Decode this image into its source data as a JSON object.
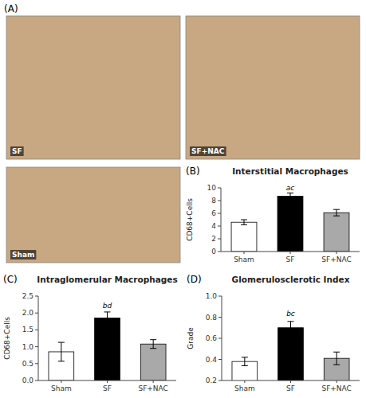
{
  "chart_data": [
    {
      "type": "image",
      "categories": [
        "SF",
        "SF+NAC",
        "Sham"
      ],
      "color": "#c8a882",
      "annotations": [
        {
          "text": "(A)"
        }
      ]
    },
    {
      "type": "bar",
      "title": "Interstitial Macrophages",
      "categories": [
        "Sham",
        "SF",
        "SF+NAC"
      ],
      "values": [
        4.6,
        8.7,
        6.1
      ],
      "errors": [
        0.4,
        0.5,
        0.5
      ],
      "ylabel": "CD68+Cells",
      "ylim": [
        0,
        10
      ],
      "yticks": [
        0,
        2,
        4,
        6,
        8,
        10
      ],
      "colors": [
        "white",
        "black",
        "#A9A9A9"
      ],
      "annotations": [
        {
          "text": "(B)"
        },
        {
          "text": "ac",
          "x": "SF",
          "y": 9.4
        }
      ]
    },
    {
      "type": "bar",
      "title": "Intraglomerular Macrophages",
      "categories": [
        "Sham",
        "SF",
        "SF+NAC"
      ],
      "values": [
        0.85,
        1.85,
        1.08
      ],
      "errors": [
        0.28,
        0.18,
        0.13
      ],
      "ylabel": "CD68+Cells",
      "ylim": [
        0,
        2.5
      ],
      "yticks": [
        {
          "value": 0,
          "label": "0.0"
        },
        0.5,
        {
          "value": 1,
          "label": "1.0"
        },
        1.5,
        {
          "value": 2,
          "label": "2.0"
        },
        2.5
      ],
      "colors": [
        "white",
        "black",
        "#A9A9A9"
      ],
      "annotations": [
        {
          "text": "(C)"
        },
        {
          "text": "bd",
          "x": "SF",
          "y": 2.1
        }
      ]
    },
    {
      "type": "bar",
      "title": "Glomerulosclerotic Index",
      "categories": [
        "Sham",
        "SF",
        "SF+NAC"
      ],
      "values": [
        0.38,
        0.7,
        0.41
      ],
      "errors": [
        0.04,
        0.06,
        0.06
      ],
      "ylabel": "Grade",
      "ylim": [
        0.2,
        1.0
      ],
      "yticks": [
        0.2,
        0.4,
        0.6,
        0.8,
        {
          "value": 1,
          "label": "1.0"
        }
      ],
      "colors": [
        "white",
        "black",
        "#A9A9A9"
      ],
      "annotations": [
        {
          "text": "(D)"
        },
        {
          "text": "bc",
          "x": "SF",
          "y": 0.8
        }
      ]
    }
  ]
}
